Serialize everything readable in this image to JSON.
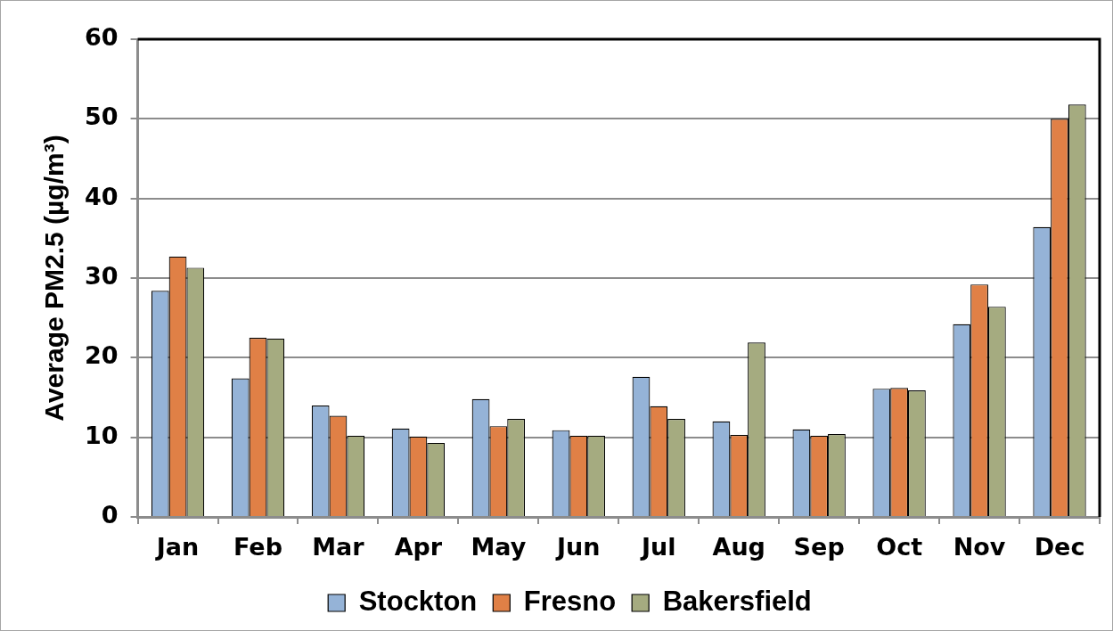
{
  "chart_data": {
    "type": "bar",
    "ylabel": "Average PM2.5 (µg/m³)",
    "categories": [
      "Jan",
      "Feb",
      "Mar",
      "Apr",
      "May",
      "Jun",
      "Jul",
      "Aug",
      "Sep",
      "Oct",
      "Nov",
      "Dec"
    ],
    "series": [
      {
        "name": "Stockton",
        "color": "#95b3d7",
        "values": [
          28.4,
          17.4,
          14.0,
          11.1,
          14.8,
          10.9,
          17.6,
          12.0,
          11.0,
          16.1,
          24.2,
          36.4
        ]
      },
      {
        "name": "Fresno",
        "color": "#e08046",
        "values": [
          32.7,
          22.5,
          12.7,
          10.1,
          11.4,
          10.2,
          13.9,
          10.3,
          10.2,
          16.2,
          29.2,
          50.0
        ]
      },
      {
        "name": "Bakersfield",
        "color": "#a5ab80",
        "values": [
          31.3,
          22.4,
          10.2,
          9.3,
          12.3,
          10.2,
          12.3,
          21.9,
          10.4,
          15.9,
          26.4,
          51.8
        ]
      }
    ],
    "ylim": [
      0,
      60
    ],
    "yticks": [
      0,
      10,
      20,
      30,
      40,
      50,
      60
    ],
    "grid": "y",
    "legend": "bottom"
  }
}
